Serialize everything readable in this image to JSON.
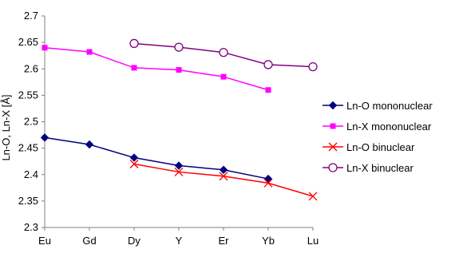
{
  "chart_data": {
    "type": "line",
    "title": "",
    "xlabel": "",
    "ylabel": "Ln-O, Ln-X [Å]",
    "categories": [
      "Eu",
      "Gd",
      "Dy",
      "Y",
      "Er",
      "Yb",
      "Lu"
    ],
    "ylim": [
      2.3,
      2.7
    ],
    "yticks": [
      "2.3",
      "2.35",
      "2.4",
      "2.45",
      "2.5",
      "2.55",
      "2.6",
      "2.65",
      "2.7"
    ],
    "grid": false,
    "legend_position": "right",
    "series": [
      {
        "name": "Ln-O mononuclear",
        "color": "#000080",
        "marker": "diamond",
        "values": [
          2.47,
          2.457,
          2.432,
          2.417,
          2.409,
          2.392,
          null
        ]
      },
      {
        "name": "Ln-X mononuclear",
        "color": "#FF00FF",
        "marker": "square",
        "values": [
          2.64,
          2.632,
          2.602,
          2.598,
          2.585,
          2.56,
          null
        ]
      },
      {
        "name": "Ln-O binuclear",
        "color": "#FF0000",
        "marker": "x",
        "values": [
          null,
          null,
          2.42,
          2.405,
          2.397,
          2.384,
          2.359
        ]
      },
      {
        "name": "Ln-X binuclear",
        "color": "#800080",
        "marker": "circle",
        "values": [
          null,
          null,
          2.648,
          2.641,
          2.631,
          2.608,
          2.604
        ]
      }
    ]
  }
}
